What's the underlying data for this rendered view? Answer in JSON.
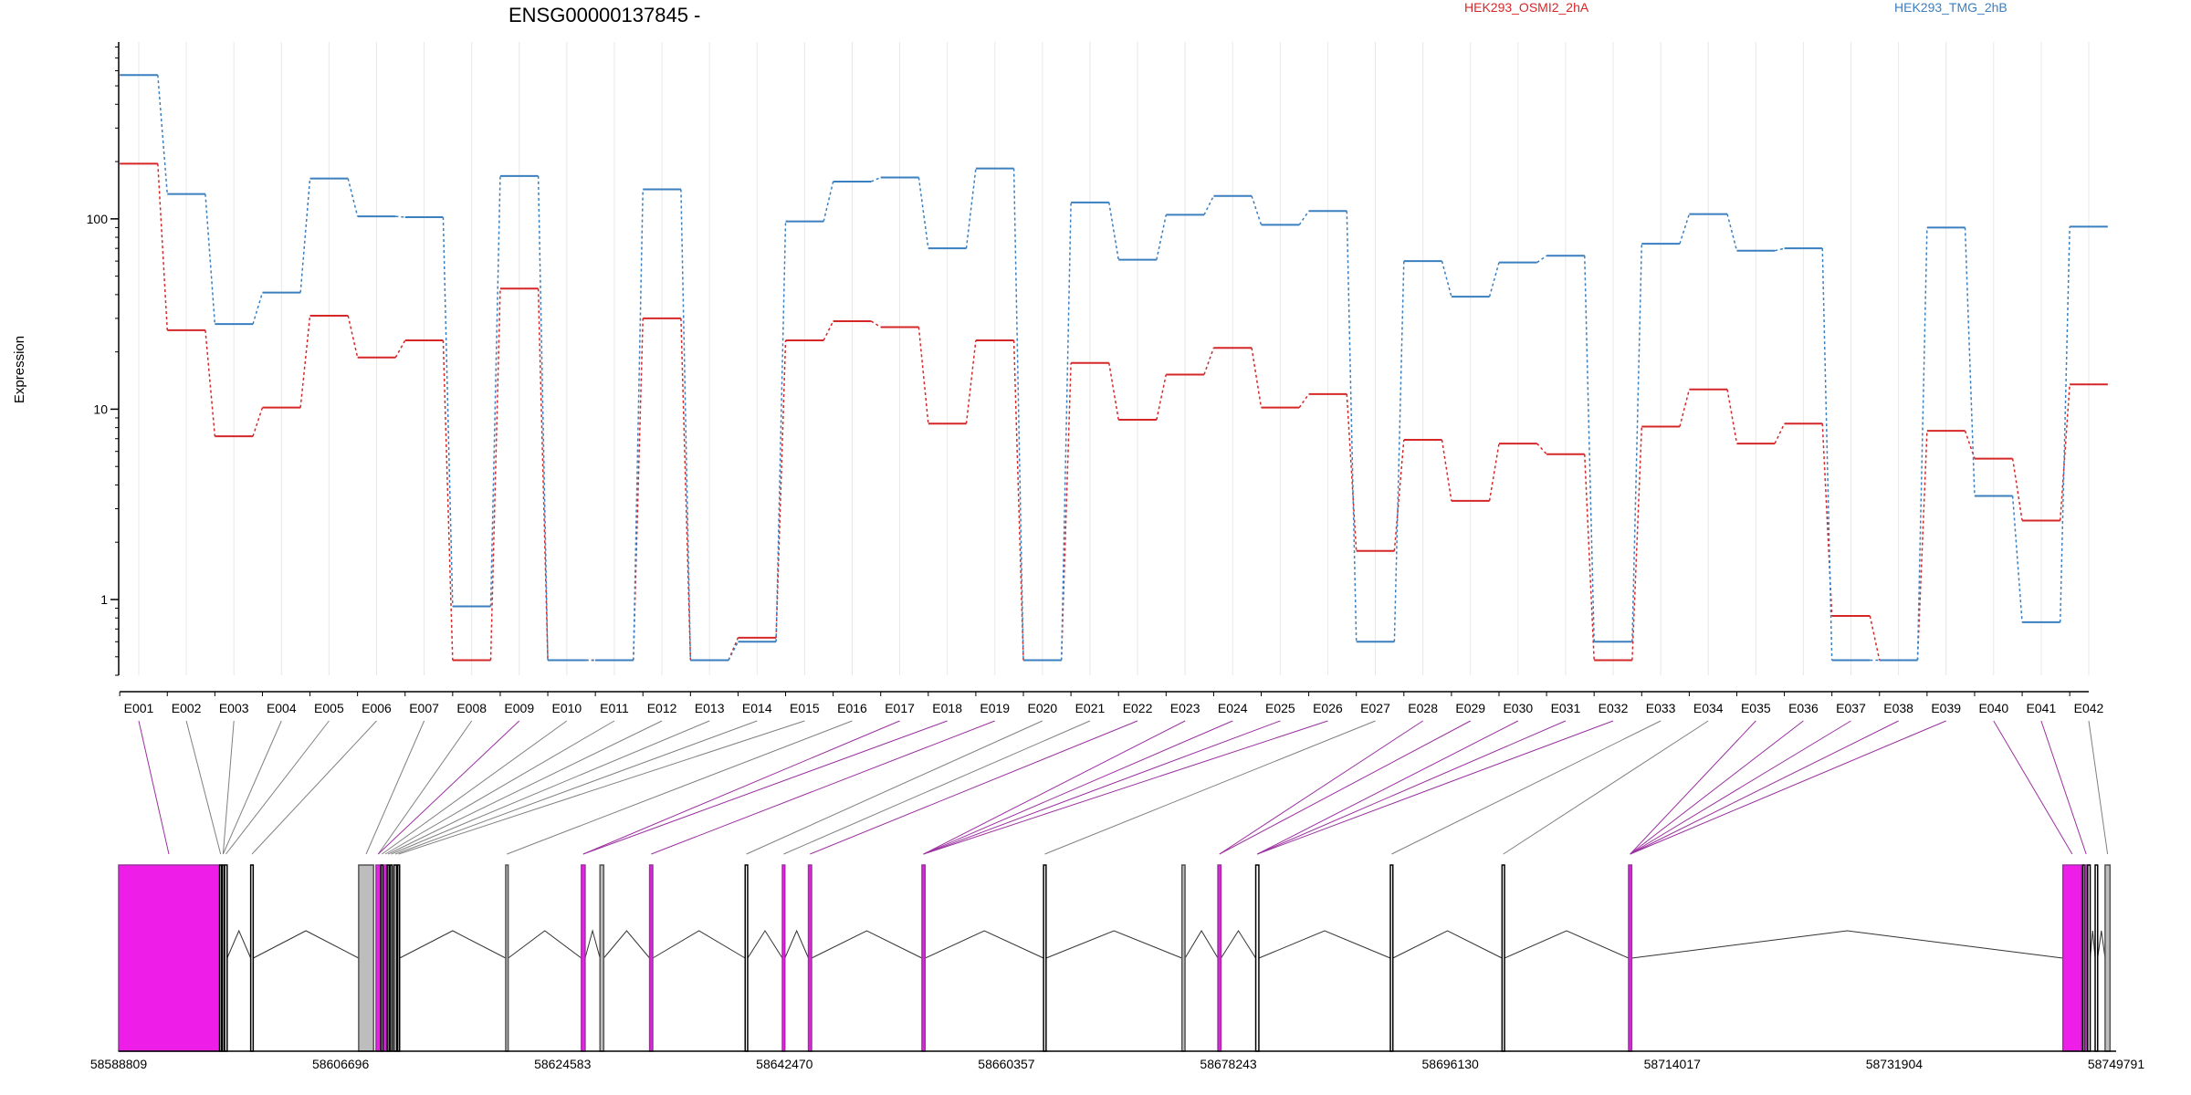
{
  "title": "ENSG00000137845 -",
  "chart_data": {
    "type": "line",
    "ylabel": "Expression",
    "xlabel": "",
    "yscale": "log",
    "ylim": [
      0.4,
      850
    ],
    "yticks": [
      {
        "value": 1,
        "label": "1"
      },
      {
        "value": 10,
        "label": "10"
      },
      {
        "value": 100,
        "label": "100"
      }
    ],
    "categories": [
      "E001",
      "E002",
      "E003",
      "E004",
      "E005",
      "E006",
      "E007",
      "E008",
      "E009",
      "E010",
      "E011",
      "E012",
      "E013",
      "E014",
      "E015",
      "E016",
      "E017",
      "E018",
      "E019",
      "E020",
      "E021",
      "E022",
      "E023",
      "E024",
      "E025",
      "E026",
      "E027",
      "E028",
      "E029",
      "E030",
      "E031",
      "E032",
      "E033",
      "E034",
      "E035",
      "E036",
      "E037",
      "E038",
      "E039",
      "E040",
      "E041",
      "E042"
    ],
    "series": [
      {
        "name": "HEK293_OSMI2_2hA",
        "color": "#d62728",
        "values": [
          195,
          26,
          7.2,
          10.2,
          31,
          18.7,
          23,
          0.48,
          43,
          0.48,
          0.48,
          30,
          0.48,
          0.63,
          23,
          29,
          27,
          8.4,
          23,
          0.48,
          17.5,
          8.8,
          15.2,
          21,
          10.2,
          12,
          1.8,
          6.9,
          3.3,
          6.6,
          5.8,
          0.48,
          8.1,
          12.7,
          6.6,
          8.4,
          0.82,
          0.48,
          7.7,
          5.5,
          2.6,
          13.5
        ]
      },
      {
        "name": "HEK293_TMG_2hB",
        "color": "#3a7fbf",
        "values": [
          570,
          135,
          28,
          41,
          163,
          103,
          102,
          0.92,
          168,
          0.48,
          0.48,
          143,
          0.48,
          0.6,
          97,
          157,
          165,
          70,
          184,
          0.48,
          122,
          61,
          105,
          132,
          93,
          110,
          0.6,
          60,
          39,
          59,
          64,
          0.6,
          74,
          106,
          68,
          70,
          0.48,
          0.48,
          90,
          3.5,
          0.76,
          91
        ]
      }
    ],
    "legend_placement": "top"
  },
  "gene_model": {
    "coordinates": [
      "58588809",
      "58606696",
      "58624583",
      "58642470",
      "58660357",
      "58678243",
      "58696130",
      "58714017",
      "58731904",
      "58749791"
    ],
    "genomic_range": [
      58588809,
      58749791
    ],
    "colors": {
      "highlight": "#ee1ee8",
      "highlight_line": "#9b30a0",
      "constitutive": "#000000",
      "noncounted": "#bdbdbd",
      "connector": "#808080"
    },
    "exons": [
      {
        "id": "E001",
        "start": 58588809,
        "end": 58596900,
        "kind": "highlight"
      },
      {
        "id": "E002",
        "start": 58596950,
        "end": 58597100,
        "kind": "normal"
      },
      {
        "id": "E003",
        "start": 58597150,
        "end": 58597300,
        "kind": "normal"
      },
      {
        "id": "E004",
        "start": 58597350,
        "end": 58597550,
        "kind": "normal"
      },
      {
        "id": "E005",
        "start": 58599450,
        "end": 58599650,
        "kind": "normal"
      },
      {
        "id": "E006",
        "start": 58608150,
        "end": 58609350,
        "kind": "gray"
      },
      {
        "id": "E007",
        "start": 58609550,
        "end": 58609900,
        "kind": "highlight"
      },
      {
        "id": "E008",
        "start": 58609950,
        "end": 58610100,
        "kind": "normal"
      },
      {
        "id": "E009",
        "start": 58610200,
        "end": 58610400,
        "kind": "highlight"
      },
      {
        "id": "E010",
        "start": 58610450,
        "end": 58610600,
        "kind": "normal"
      },
      {
        "id": "E011",
        "start": 58610700,
        "end": 58610850,
        "kind": "normal"
      },
      {
        "id": "E012",
        "start": 58611000,
        "end": 58611200,
        "kind": "normal"
      },
      {
        "id": "E013",
        "start": 58611300,
        "end": 58611450,
        "kind": "normal"
      },
      {
        "id": "E014",
        "start": 58620000,
        "end": 58620200,
        "kind": "gray"
      },
      {
        "id": "E015",
        "start": 58626100,
        "end": 58626400,
        "kind": "highlight"
      },
      {
        "id": "E016",
        "start": 58627600,
        "end": 58627900,
        "kind": "gray"
      },
      {
        "id": "E017",
        "start": 58631600,
        "end": 58631850,
        "kind": "highlight"
      },
      {
        "id": "E018",
        "start": 58639300,
        "end": 58639500,
        "kind": "normal"
      },
      {
        "id": "E019",
        "start": 58642300,
        "end": 58642500,
        "kind": "highlight"
      },
      {
        "id": "E020",
        "start": 58644400,
        "end": 58644650,
        "kind": "highlight"
      },
      {
        "id": "E021",
        "start": 58653550,
        "end": 58653800,
        "kind": "highlight"
      },
      {
        "id": "E022",
        "start": 58663350,
        "end": 58663550,
        "kind": "normal"
      },
      {
        "id": "E023",
        "start": 58674500,
        "end": 58674750,
        "kind": "gray"
      },
      {
        "id": "E024",
        "start": 58677400,
        "end": 58677650,
        "kind": "highlight"
      },
      {
        "id": "E025",
        "start": 58680450,
        "end": 58680700,
        "kind": "normal"
      },
      {
        "id": "E026",
        "start": 58691300,
        "end": 58691500,
        "kind": "normal"
      },
      {
        "id": "E027",
        "start": 58700300,
        "end": 58700500,
        "kind": "normal"
      },
      {
        "id": "E028",
        "start": 58710500,
        "end": 58710750,
        "kind": "highlight"
      },
      {
        "id": "E029",
        "start": 58745500,
        "end": 58747000,
        "kind": "highlight"
      },
      {
        "id": "E030",
        "start": 58747100,
        "end": 58747200,
        "kind": "normal"
      },
      {
        "id": "E031",
        "start": 58747300,
        "end": 58747450,
        "kind": "highlight"
      },
      {
        "id": "E032",
        "start": 58747500,
        "end": 58747700,
        "kind": "normal"
      },
      {
        "id": "E033",
        "start": 58748100,
        "end": 58748300,
        "kind": "normal"
      },
      {
        "id": "E034",
        "start": 58748900,
        "end": 58749300,
        "kind": "gray"
      }
    ],
    "mapping": [
      {
        "label": "E001",
        "exon": "E001",
        "kind": "highlight"
      },
      {
        "label": "E002",
        "exon": "E002",
        "kind": "normal"
      },
      {
        "label": "E003",
        "exon": "E003",
        "kind": "normal"
      },
      {
        "label": "E004",
        "exon": "E003",
        "kind": "normal"
      },
      {
        "label": "E005",
        "exon": "E004",
        "kind": "normal"
      },
      {
        "label": "E006",
        "exon": "E005",
        "kind": "normal"
      },
      {
        "label": "E007",
        "exon": "E006",
        "kind": "normal"
      },
      {
        "label": "E008",
        "exon": "E007",
        "kind": "normal"
      },
      {
        "label": "E009",
        "exon": "E007",
        "kind": "highlight"
      },
      {
        "label": "E010",
        "exon": "E008",
        "kind": "normal"
      },
      {
        "label": "E011",
        "exon": "E009",
        "kind": "normal"
      },
      {
        "label": "E012",
        "exon": "E010",
        "kind": "normal"
      },
      {
        "label": "E013",
        "exon": "E011",
        "kind": "normal"
      },
      {
        "label": "E014",
        "exon": "E012",
        "kind": "normal"
      },
      {
        "label": "E015",
        "exon": "E013",
        "kind": "normal"
      },
      {
        "label": "E016",
        "exon": "E014",
        "kind": "normal"
      },
      {
        "label": "E017",
        "exon": "E015",
        "kind": "highlight"
      },
      {
        "label": "E018",
        "exon": "E015",
        "kind": "highlight"
      },
      {
        "label": "E019",
        "exon": "E017",
        "kind": "highlight"
      },
      {
        "label": "E020",
        "exon": "E018",
        "kind": "normal"
      },
      {
        "label": "E021",
        "exon": "E019",
        "kind": "normal"
      },
      {
        "label": "E022",
        "exon": "E020",
        "kind": "highlight"
      },
      {
        "label": "E023",
        "exon": "E021",
        "kind": "highlight"
      },
      {
        "label": "E024",
        "exon": "E021",
        "kind": "highlight"
      },
      {
        "label": "E025",
        "exon": "E021",
        "kind": "highlight"
      },
      {
        "label": "E026",
        "exon": "E021",
        "kind": "highlight"
      },
      {
        "label": "E027",
        "exon": "E022",
        "kind": "normal"
      },
      {
        "label": "E028",
        "exon": "E024",
        "kind": "highlight"
      },
      {
        "label": "E029",
        "exon": "E024",
        "kind": "highlight"
      },
      {
        "label": "E030",
        "exon": "E025",
        "kind": "highlight"
      },
      {
        "label": "E031",
        "exon": "E025",
        "kind": "highlight"
      },
      {
        "label": "E032",
        "exon": "E025",
        "kind": "highlight"
      },
      {
        "label": "E033",
        "exon": "E026",
        "kind": "normal"
      },
      {
        "label": "E034",
        "exon": "E027",
        "kind": "normal"
      },
      {
        "label": "E035",
        "exon": "E028",
        "kind": "highlight"
      },
      {
        "label": "E036",
        "exon": "E028",
        "kind": "highlight"
      },
      {
        "label": "E037",
        "exon": "E028",
        "kind": "highlight"
      },
      {
        "label": "E038",
        "exon": "E028",
        "kind": "highlight"
      },
      {
        "label": "E039",
        "exon": "E028",
        "kind": "highlight"
      },
      {
        "label": "E040",
        "exon": "E029",
        "kind": "highlight"
      },
      {
        "label": "E041",
        "exon": "E031",
        "kind": "highlight"
      },
      {
        "label": "E042",
        "exon": "E034",
        "kind": "normal"
      }
    ]
  }
}
